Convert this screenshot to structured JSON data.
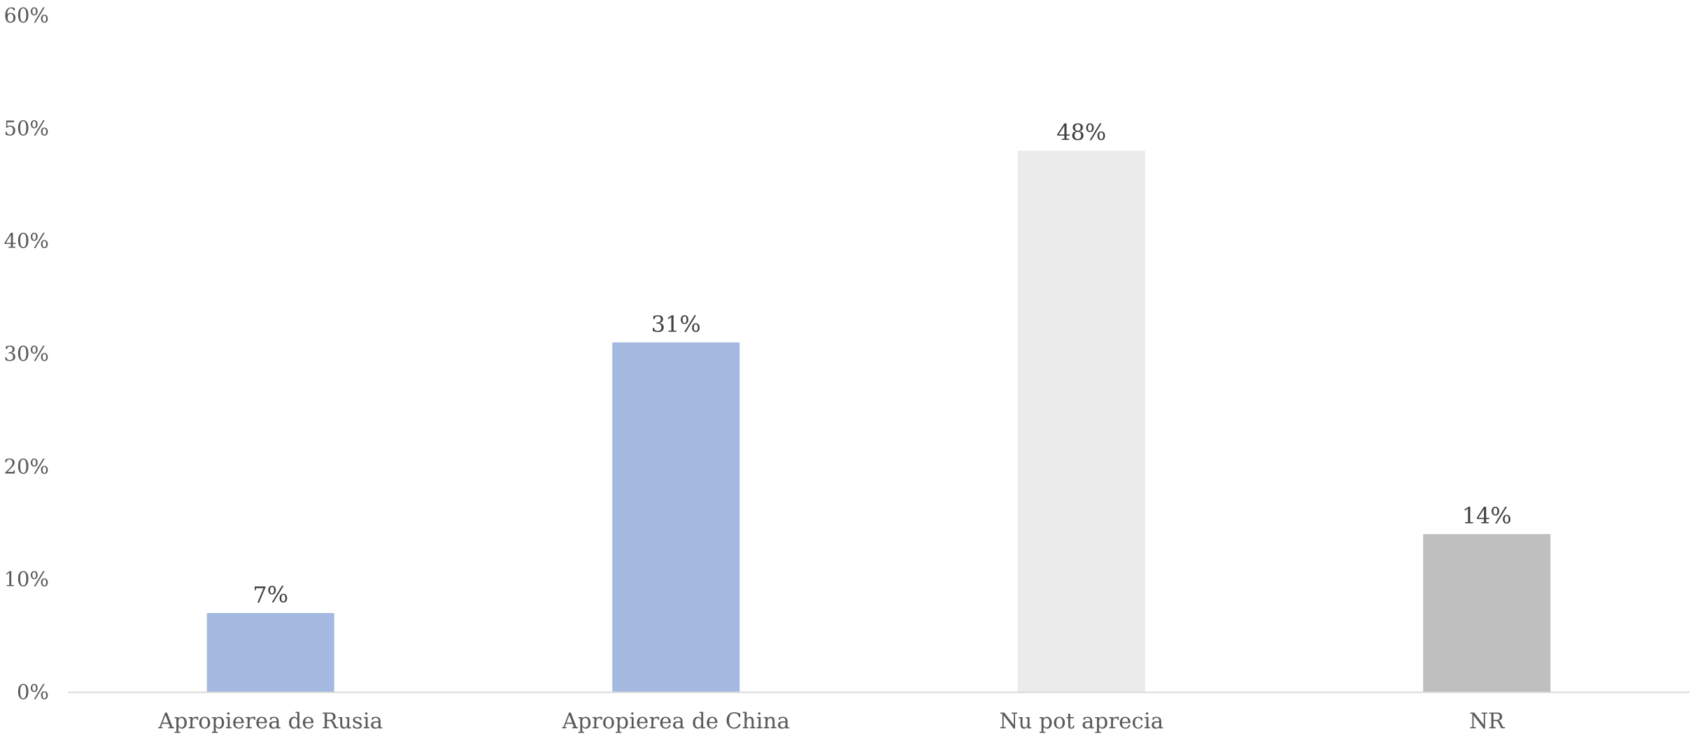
{
  "chart_data": {
    "type": "bar",
    "categories": [
      "Apropierea de Rusia",
      "Apropierea de China",
      "Nu pot aprecia",
      "NR"
    ],
    "values": [
      7,
      31,
      48,
      14
    ],
    "value_labels": [
      "7%",
      "31%",
      "48%",
      "14%"
    ],
    "bar_colors": [
      "#a3b9e0",
      "#a3b9e0",
      "#ebebeb",
      "#bfbfbf"
    ],
    "y_ticks": [
      0,
      10,
      20,
      30,
      40,
      50,
      60
    ],
    "y_tick_labels": [
      "0%",
      "10%",
      "20%",
      "30%",
      "40%",
      "50%",
      "60%"
    ],
    "ylim": [
      0,
      60
    ],
    "title": "",
    "xlabel": "",
    "ylabel": "",
    "grid": false,
    "legend": "none",
    "axis_color": "#d9d9d9"
  }
}
